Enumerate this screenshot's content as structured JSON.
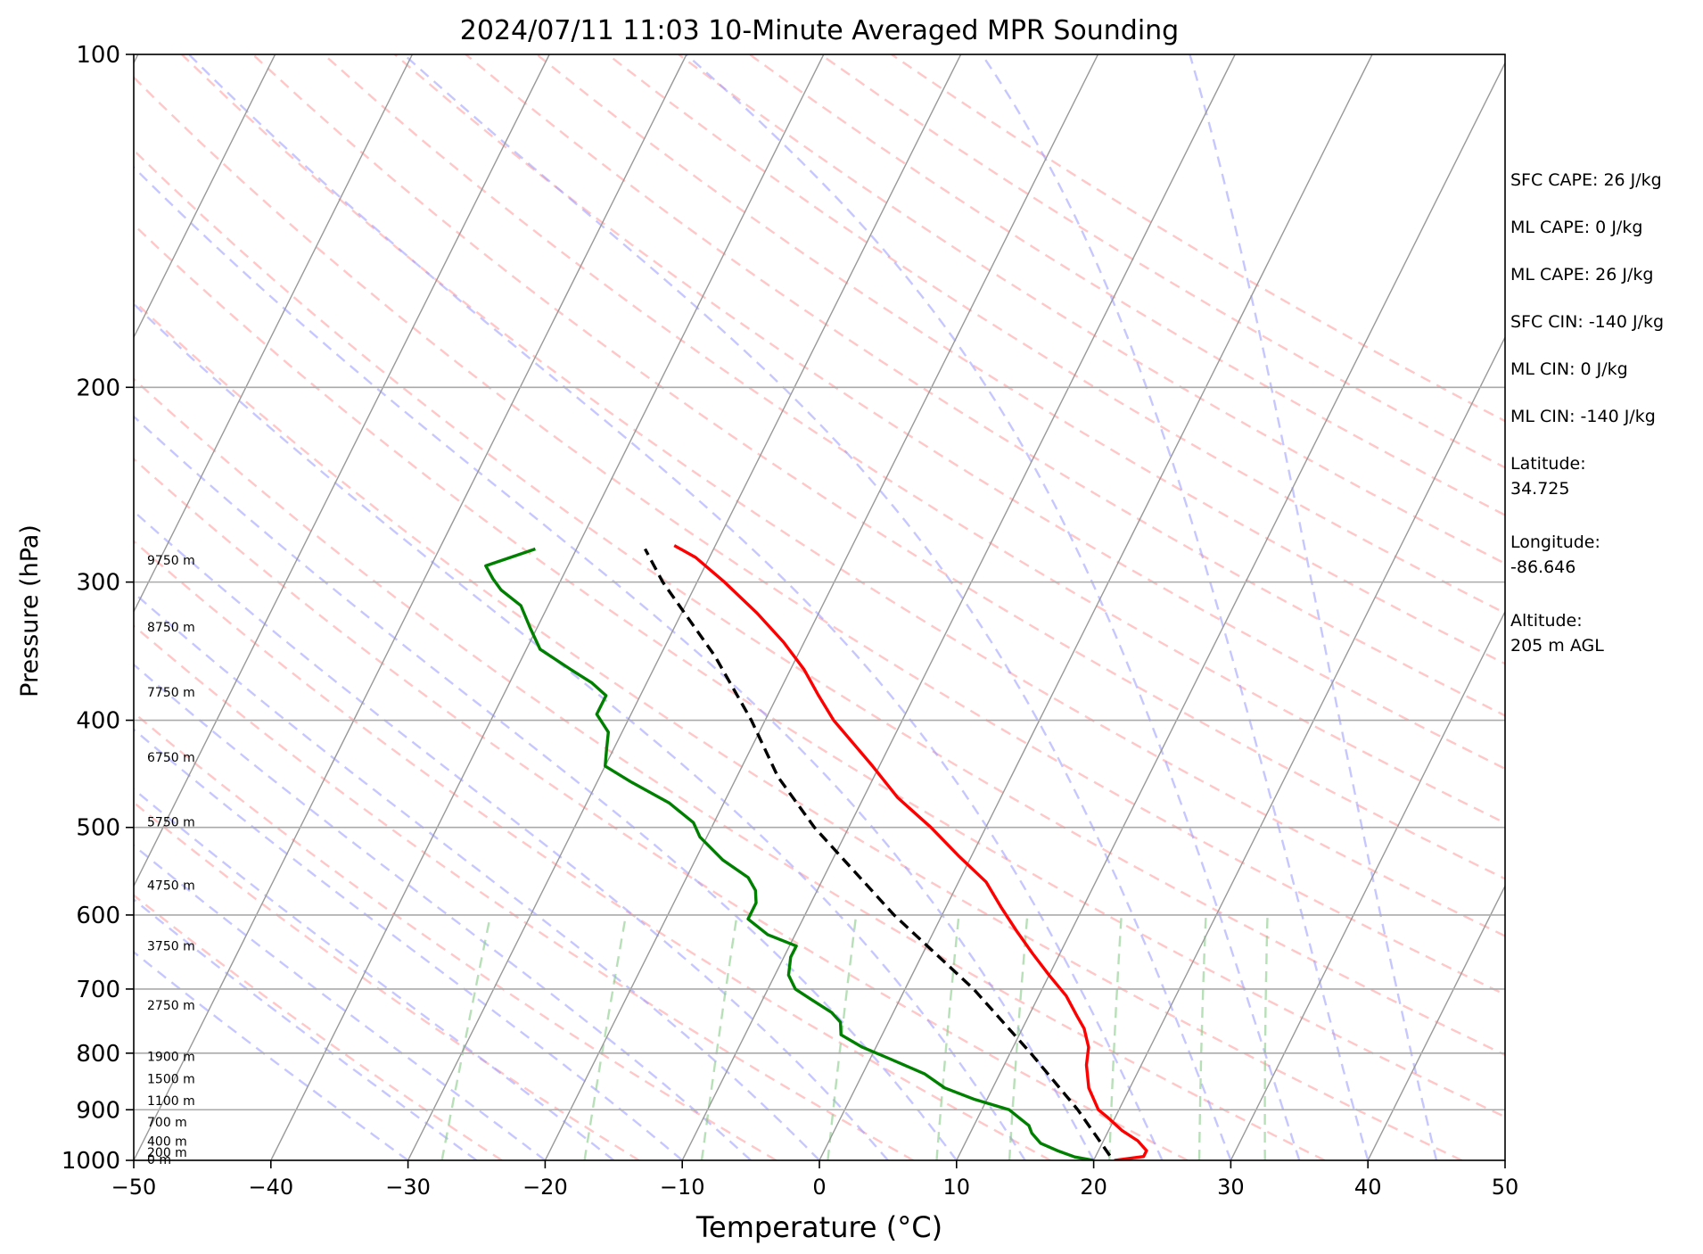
{
  "chart_data": {
    "type": "skew-t log-p",
    "title": "2024/07/11 11:03 10-Minute Averaged MPR Sounding",
    "xlabel": "Temperature (°C)",
    "ylabel": "Pressure (hPa)",
    "xlim": [
      -50,
      50
    ],
    "ylim": [
      1000,
      100
    ],
    "y_scale": "log",
    "x_ticks": [
      "−50",
      "−40",
      "−30",
      "−20",
      "−10",
      "0",
      "10",
      "20",
      "30",
      "40",
      "50"
    ],
    "y_ticks": [
      "100",
      "200",
      "300",
      "400",
      "500",
      "600",
      "700",
      "800",
      "900",
      "1000"
    ],
    "grid": "horizontal isobars at labeled pressures",
    "height_labels": [
      {
        "p": 1000,
        "text": "0 m"
      },
      {
        "p": 985,
        "text": "200 m"
      },
      {
        "p": 963,
        "text": "400 m"
      },
      {
        "p": 925,
        "text": "700 m"
      },
      {
        "p": 885,
        "text": "1100 m"
      },
      {
        "p": 845,
        "text": "1500 m"
      },
      {
        "p": 807,
        "text": "1900 m"
      },
      {
        "p": 725,
        "text": "2750 m"
      },
      {
        "p": 641,
        "text": "3750 m"
      },
      {
        "p": 565,
        "text": "4750 m"
      },
      {
        "p": 495,
        "text": "5750 m"
      },
      {
        "p": 433,
        "text": "6750 m"
      },
      {
        "p": 378,
        "text": "7750 m"
      },
      {
        "p": 330,
        "text": "8750 m"
      },
      {
        "p": 287,
        "text": "9750 m"
      }
    ],
    "series": [
      {
        "color": "#ff0000",
        "points": [
          [
            1000,
            21.5
          ],
          [
            992,
            23.5
          ],
          [
            980,
            23.5
          ],
          [
            960,
            22.5
          ],
          [
            940,
            21.0
          ],
          [
            915,
            19.5
          ],
          [
            900,
            18.5
          ],
          [
            860,
            17.0
          ],
          [
            820,
            16.0
          ],
          [
            790,
            15.5
          ],
          [
            760,
            14.5
          ],
          [
            740,
            13.5
          ],
          [
            710,
            12.0
          ],
          [
            680,
            10.0
          ],
          [
            650,
            8.0
          ],
          [
            620,
            6.0
          ],
          [
            590,
            4.0
          ],
          [
            560,
            2.0
          ],
          [
            530,
            -1.0
          ],
          [
            500,
            -4.0
          ],
          [
            470,
            -7.5
          ],
          [
            440,
            -10.5
          ],
          [
            400,
            -15.0
          ],
          [
            380,
            -17.0
          ],
          [
            360,
            -19.0
          ],
          [
            340,
            -21.5
          ],
          [
            320,
            -24.5
          ],
          [
            300,
            -28.0
          ],
          [
            285,
            -31.0
          ],
          [
            278,
            -33.0
          ]
        ]
      },
      {
        "color": "#008000",
        "points": [
          [
            1000,
            20.0
          ],
          [
            993,
            18.5
          ],
          [
            980,
            17.0
          ],
          [
            965,
            15.5
          ],
          [
            945,
            14.5
          ],
          [
            930,
            14.0
          ],
          [
            915,
            13.0
          ],
          [
            900,
            12.0
          ],
          [
            880,
            9.0
          ],
          [
            860,
            6.5
          ],
          [
            835,
            4.5
          ],
          [
            810,
            1.5
          ],
          [
            790,
            -1.0
          ],
          [
            770,
            -3.0
          ],
          [
            750,
            -3.5
          ],
          [
            735,
            -4.5
          ],
          [
            715,
            -6.5
          ],
          [
            700,
            -8.0
          ],
          [
            680,
            -9.0
          ],
          [
            655,
            -9.5
          ],
          [
            640,
            -9.5
          ],
          [
            625,
            -12.0
          ],
          [
            605,
            -14.0
          ],
          [
            585,
            -14.0
          ],
          [
            570,
            -14.5
          ],
          [
            555,
            -15.5
          ],
          [
            535,
            -18.0
          ],
          [
            510,
            -20.5
          ],
          [
            495,
            -21.5
          ],
          [
            475,
            -24.0
          ],
          [
            455,
            -27.5
          ],
          [
            440,
            -30.0
          ],
          [
            425,
            -30.5
          ],
          [
            410,
            -31.0
          ],
          [
            395,
            -32.5
          ],
          [
            380,
            -32.5
          ],
          [
            370,
            -34.0
          ],
          [
            360,
            -36.0
          ],
          [
            345,
            -39.0
          ],
          [
            330,
            -40.5
          ],
          [
            315,
            -42.0
          ],
          [
            305,
            -44.0
          ],
          [
            298,
            -45.0
          ],
          [
            290,
            -46.0
          ],
          [
            280,
            -43.0
          ]
        ]
      },
      {
        "color": "#000000",
        "dashed": true,
        "points": [
          [
            990,
            21.0
          ],
          [
            900,
            17.0
          ],
          [
            800,
            11.5
          ],
          [
            700,
            5.0
          ],
          [
            600,
            -3.5
          ],
          [
            500,
            -12.5
          ],
          [
            450,
            -17.0
          ],
          [
            400,
            -21.0
          ],
          [
            350,
            -26.0
          ],
          [
            300,
            -32.5
          ],
          [
            280,
            -35.0
          ]
        ]
      }
    ]
  },
  "info_panel": {
    "sfc_cape": "SFC CAPE: 26 J/kg",
    "ml_cape_1": "ML CAPE: 0 J/kg",
    "ml_cape_2": "ML CAPE: 26 J/kg",
    "sfc_cin": "SFC CIN: -140 J/kg",
    "ml_cin_1": "ML CIN: 0 J/kg",
    "ml_cin_2": "ML CIN: -140 J/kg",
    "latitude": "Latitude:\n34.725",
    "longitude": "Longitude:\n-86.646",
    "altitude": "Altitude:\n205 m AGL"
  },
  "colors": {
    "temperature": "#ff0000",
    "dewpoint": "#008000",
    "parcel": "#000000",
    "dry_adiabat": "#ff9999",
    "moist_adiabat": "#9999ff",
    "mixing_ratio": "#88cc88",
    "isotherm": "#999999"
  }
}
